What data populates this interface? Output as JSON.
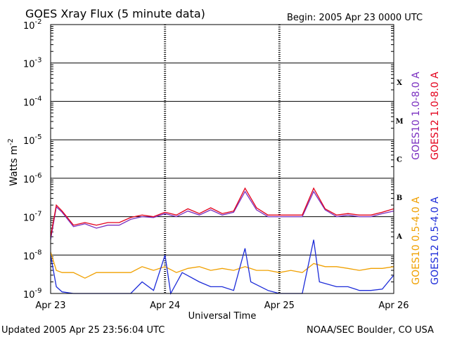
{
  "header": {
    "title": "GOES Xray Flux (5 minute data)",
    "begin_label": "Begin:  2005 Apr 23 0000 UTC"
  },
  "footer": {
    "updated": "Updated 2005 Apr 25 23:56:04 UTC",
    "source": "NOAA/SEC Boulder, CO USA"
  },
  "chart_data": {
    "type": "line",
    "title": "GOES Xray Flux (5 minute data)",
    "xlabel": "Universal Time",
    "ylabel_base": "Watts m",
    "ylabel_exp": "-2",
    "y_scale": "log",
    "ylim": [
      1e-09,
      0.01
    ],
    "xlim": [
      "2005-04-23T00:00",
      "2005-04-26T00:00"
    ],
    "x_ticks": [
      {
        "x": "2005-04-23T00:00",
        "label": "Apr 23"
      },
      {
        "x": "2005-04-24T00:00",
        "label": "Apr 24"
      },
      {
        "x": "2005-04-25T00:00",
        "label": "Apr 25"
      },
      {
        "x": "2005-04-26T00:00",
        "label": "Apr 26"
      }
    ],
    "y_ticks": [
      {
        "exp": -9,
        "base": "10",
        "sup": "-9"
      },
      {
        "exp": -8,
        "base": "10",
        "sup": "-8"
      },
      {
        "exp": -7,
        "base": "10",
        "sup": "-7"
      },
      {
        "exp": -6,
        "base": "10",
        "sup": "-6"
      },
      {
        "exp": -5,
        "base": "10",
        "sup": "-5"
      },
      {
        "exp": -4,
        "base": "10",
        "sup": "-4"
      },
      {
        "exp": -3,
        "base": "10",
        "sup": "-3"
      },
      {
        "exp": -2,
        "base": "10",
        "sup": "-2"
      }
    ],
    "flare_classes": [
      {
        "label": "X",
        "lo": -4,
        "hi": -3
      },
      {
        "label": "M",
        "lo": -5,
        "hi": -4
      },
      {
        "label": "C",
        "lo": -6,
        "hi": -5
      },
      {
        "label": "B",
        "lo": -7,
        "hi": -6
      },
      {
        "label": "A",
        "lo": -8,
        "hi": -7
      }
    ],
    "grid": "horizontal lines at each decade; dashed day boundaries",
    "legend": "right side, vertical text",
    "series": [
      {
        "name": "GOES10 1.0-8.0 A",
        "color": "#7a2fc0",
        "points": [
          [
            "2005-04-23T00:00",
            2.5e-08
          ],
          [
            "2005-04-23T01:12",
            1.8e-07
          ],
          [
            "2005-04-23T02:24",
            1.3e-07
          ],
          [
            "2005-04-23T04:48",
            5.5e-08
          ],
          [
            "2005-04-23T07:12",
            6.5e-08
          ],
          [
            "2005-04-23T09:36",
            5e-08
          ],
          [
            "2005-04-23T12:00",
            6e-08
          ],
          [
            "2005-04-23T14:24",
            6e-08
          ],
          [
            "2005-04-23T16:48",
            8.5e-08
          ],
          [
            "2005-04-23T19:12",
            1e-07
          ],
          [
            "2005-04-23T21:36",
            9.5e-08
          ],
          [
            "2005-04-24T00:00",
            1.2e-07
          ],
          [
            "2005-04-24T02:24",
            1e-07
          ],
          [
            "2005-04-24T04:48",
            1.4e-07
          ],
          [
            "2005-04-24T07:12",
            1.1e-07
          ],
          [
            "2005-04-24T09:36",
            1.5e-07
          ],
          [
            "2005-04-24T12:00",
            1.1e-07
          ],
          [
            "2005-04-24T14:24",
            1.3e-07
          ],
          [
            "2005-04-24T16:48",
            4.5e-07
          ],
          [
            "2005-04-24T19:12",
            1.5e-07
          ],
          [
            "2005-04-24T21:36",
            1e-07
          ],
          [
            "2005-04-25T00:00",
            1e-07
          ],
          [
            "2005-04-25T02:24",
            1e-07
          ],
          [
            "2005-04-25T04:48",
            1e-07
          ],
          [
            "2005-04-25T07:12",
            4.5e-07
          ],
          [
            "2005-04-25T09:36",
            1.5e-07
          ],
          [
            "2005-04-25T12:00",
            1e-07
          ],
          [
            "2005-04-25T14:24",
            1.1e-07
          ],
          [
            "2005-04-25T16:48",
            1e-07
          ],
          [
            "2005-04-25T19:12",
            1e-07
          ],
          [
            "2005-04-25T21:36",
            1.2e-07
          ],
          [
            "2005-04-26T00:00",
            1.4e-07
          ]
        ]
      },
      {
        "name": "GOES12 1.0-8.0 A",
        "color": "#e3001b",
        "points": [
          [
            "2005-04-23T00:00",
            3e-08
          ],
          [
            "2005-04-23T01:12",
            2e-07
          ],
          [
            "2005-04-23T02:24",
            1.4e-07
          ],
          [
            "2005-04-23T04:48",
            6e-08
          ],
          [
            "2005-04-23T07:12",
            7e-08
          ],
          [
            "2005-04-23T09:36",
            6e-08
          ],
          [
            "2005-04-23T12:00",
            7e-08
          ],
          [
            "2005-04-23T14:24",
            7e-08
          ],
          [
            "2005-04-23T16:48",
            9.5e-08
          ],
          [
            "2005-04-23T19:12",
            1.1e-07
          ],
          [
            "2005-04-23T21:36",
            1e-07
          ],
          [
            "2005-04-24T00:00",
            1.3e-07
          ],
          [
            "2005-04-24T02:24",
            1.1e-07
          ],
          [
            "2005-04-24T04:48",
            1.6e-07
          ],
          [
            "2005-04-24T07:12",
            1.2e-07
          ],
          [
            "2005-04-24T09:36",
            1.7e-07
          ],
          [
            "2005-04-24T12:00",
            1.2e-07
          ],
          [
            "2005-04-24T14:24",
            1.4e-07
          ],
          [
            "2005-04-24T16:48",
            5.5e-07
          ],
          [
            "2005-04-24T19:12",
            1.7e-07
          ],
          [
            "2005-04-24T21:36",
            1.1e-07
          ],
          [
            "2005-04-25T00:00",
            1.1e-07
          ],
          [
            "2005-04-25T02:24",
            1.1e-07
          ],
          [
            "2005-04-25T04:48",
            1.1e-07
          ],
          [
            "2005-04-25T07:12",
            5.5e-07
          ],
          [
            "2005-04-25T09:36",
            1.6e-07
          ],
          [
            "2005-04-25T12:00",
            1.1e-07
          ],
          [
            "2005-04-25T14:24",
            1.2e-07
          ],
          [
            "2005-04-25T16:48",
            1.1e-07
          ],
          [
            "2005-04-25T19:12",
            1.1e-07
          ],
          [
            "2005-04-25T21:36",
            1.3e-07
          ],
          [
            "2005-04-26T00:00",
            1.6e-07
          ]
        ]
      },
      {
        "name": "GOES10 0.5-4.0 A",
        "color": "#f0a000",
        "points": [
          [
            "2005-04-23T00:00",
            1.2e-08
          ],
          [
            "2005-04-23T01:12",
            4e-09
          ],
          [
            "2005-04-23T02:24",
            3.5e-09
          ],
          [
            "2005-04-23T04:48",
            3.5e-09
          ],
          [
            "2005-04-23T07:12",
            2.5e-09
          ],
          [
            "2005-04-23T09:36",
            3.5e-09
          ],
          [
            "2005-04-23T12:00",
            3.5e-09
          ],
          [
            "2005-04-23T14:24",
            3.5e-09
          ],
          [
            "2005-04-23T16:48",
            3.5e-09
          ],
          [
            "2005-04-23T19:12",
            5e-09
          ],
          [
            "2005-04-23T21:36",
            4e-09
          ],
          [
            "2005-04-24T00:00",
            5e-09
          ],
          [
            "2005-04-24T02:24",
            3.5e-09
          ],
          [
            "2005-04-24T04:48",
            4.5e-09
          ],
          [
            "2005-04-24T07:12",
            5e-09
          ],
          [
            "2005-04-24T09:36",
            4e-09
          ],
          [
            "2005-04-24T12:00",
            4.5e-09
          ],
          [
            "2005-04-24T14:24",
            4e-09
          ],
          [
            "2005-04-24T16:48",
            5e-09
          ],
          [
            "2005-04-24T19:12",
            4e-09
          ],
          [
            "2005-04-24T21:36",
            4e-09
          ],
          [
            "2005-04-25T00:00",
            3.5e-09
          ],
          [
            "2005-04-25T02:24",
            4e-09
          ],
          [
            "2005-04-25T04:48",
            3.5e-09
          ],
          [
            "2005-04-25T07:12",
            6e-09
          ],
          [
            "2005-04-25T09:36",
            5e-09
          ],
          [
            "2005-04-25T12:00",
            5e-09
          ],
          [
            "2005-04-25T14:24",
            4.5e-09
          ],
          [
            "2005-04-25T16:48",
            4e-09
          ],
          [
            "2005-04-25T19:12",
            4.5e-09
          ],
          [
            "2005-04-25T21:36",
            4.5e-09
          ],
          [
            "2005-04-26T00:00",
            5e-09
          ]
        ]
      },
      {
        "name": "GOES12 0.5-4.0 A",
        "color": "#1c2bd8",
        "points": [
          [
            "2005-04-23T00:00",
            1e-08
          ],
          [
            "2005-04-23T01:12",
            1.5e-09
          ],
          [
            "2005-04-23T02:24",
            1.1e-09
          ],
          [
            "2005-04-23T04:48",
            1e-09
          ],
          [
            "2005-04-23T07:12",
            1e-09
          ],
          [
            "2005-04-23T09:36",
            1e-09
          ],
          [
            "2005-04-23T12:00",
            1e-09
          ],
          [
            "2005-04-23T14:24",
            1e-09
          ],
          [
            "2005-04-23T16:48",
            1e-09
          ],
          [
            "2005-04-23T19:12",
            2e-09
          ],
          [
            "2005-04-23T21:36",
            1.2e-09
          ],
          [
            "2005-04-24T00:00",
            1e-08
          ],
          [
            "2005-04-24T01:12",
            1e-09
          ],
          [
            "2005-04-24T03:36",
            3.5e-09
          ],
          [
            "2005-04-24T07:12",
            2e-09
          ],
          [
            "2005-04-24T09:36",
            1.5e-09
          ],
          [
            "2005-04-24T12:00",
            1.5e-09
          ],
          [
            "2005-04-24T14:24",
            1.2e-09
          ],
          [
            "2005-04-24T16:48",
            1.5e-08
          ],
          [
            "2005-04-24T18:00",
            2e-09
          ],
          [
            "2005-04-24T21:36",
            1.2e-09
          ],
          [
            "2005-04-25T00:00",
            1e-09
          ],
          [
            "2005-04-25T02:24",
            1e-09
          ],
          [
            "2005-04-25T04:48",
            1e-09
          ],
          [
            "2005-04-25T07:12",
            2.5e-08
          ],
          [
            "2005-04-25T08:24",
            2e-09
          ],
          [
            "2005-04-25T12:00",
            1.5e-09
          ],
          [
            "2005-04-25T14:24",
            1.5e-09
          ],
          [
            "2005-04-25T16:48",
            1.2e-09
          ],
          [
            "2005-04-25T19:12",
            1.2e-09
          ],
          [
            "2005-04-25T21:36",
            1.3e-09
          ],
          [
            "2005-04-26T00:00",
            3e-09
          ]
        ]
      }
    ]
  }
}
